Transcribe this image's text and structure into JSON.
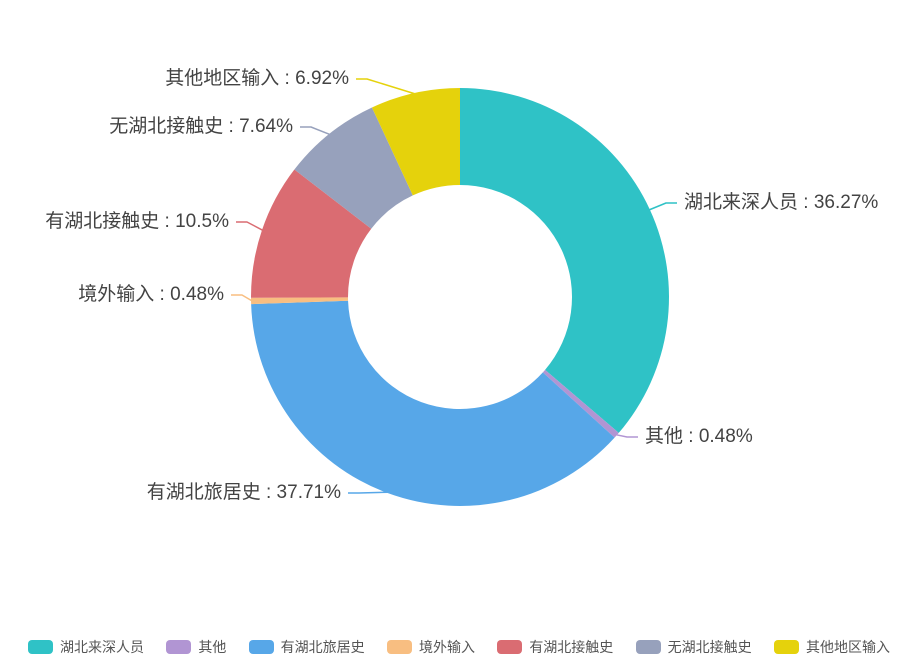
{
  "chart_data": {
    "type": "pie",
    "subtype": "donut",
    "title": "",
    "legend_position": "bottom",
    "label_format": "{name} : {value}%",
    "slices": [
      {
        "name": "湖北来深人员",
        "value": 36.27,
        "color": "#2FC2C6",
        "callout": "湖北来深人员 : 36.27%"
      },
      {
        "name": "其他",
        "value": 0.48,
        "color": "#B195D3",
        "callout": "其他 : 0.48%"
      },
      {
        "name": "有湖北旅居史",
        "value": 37.71,
        "color": "#57A7E8",
        "callout": "有湖北旅居史 : 37.71%"
      },
      {
        "name": "境外输入",
        "value": 0.48,
        "color": "#F8BE81",
        "callout": "境外输入 : 0.48%"
      },
      {
        "name": "有湖北接触史",
        "value": 10.5,
        "color": "#DA6C72",
        "callout": "有湖北接触史 : 10.5%"
      },
      {
        "name": "无湖北接触史",
        "value": 7.64,
        "color": "#97A1BC",
        "callout": "无湖北接触史 : 7.64%"
      },
      {
        "name": "其他地区输入",
        "value": 6.92,
        "color": "#E5D20C",
        "callout": "其他地区输入 : 6.92%"
      }
    ]
  }
}
